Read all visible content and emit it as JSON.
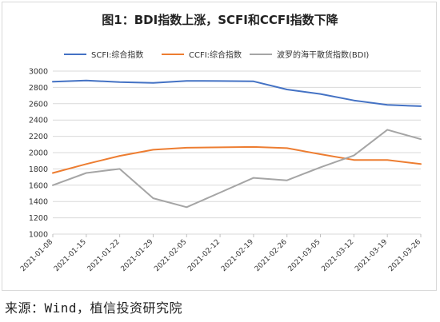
{
  "chart_data": {
    "type": "line",
    "title": "图1：BDI指数上涨，SCFI和CCFI指数下降",
    "categories": [
      "2021-01-08",
      "2021-01-15",
      "2021-01-22",
      "2021-01-29",
      "2021-02-05",
      "2021-02-12",
      "2021-02-19",
      "2021-02-26",
      "2021-03-05",
      "2021-03-12",
      "2021-03-19",
      "2021-03-26"
    ],
    "series": [
      {
        "name": "SCFI:综合指数",
        "color": "#4472c4",
        "values": [
          2870,
          2885,
          2865,
          2855,
          2880,
          2878,
          2875,
          2775,
          2720,
          2640,
          2585,
          2570
        ]
      },
      {
        "name": "CCFI:综合指数",
        "color": "#ed7d31",
        "values": [
          1750,
          1860,
          1960,
          2035,
          2060,
          2065,
          2070,
          2055,
          1980,
          1910,
          1910,
          1860
        ]
      },
      {
        "name": "波罗的海干散货指数(BDI)",
        "color": "#a5a5a5",
        "values": [
          1600,
          1750,
          1800,
          1440,
          1330,
          1510,
          1690,
          1660,
          1820,
          1965,
          2280,
          2165
        ]
      }
    ],
    "ylim": [
      1000,
      3000
    ],
    "yticks": [
      1000,
      1200,
      1400,
      1600,
      1800,
      2000,
      2200,
      2400,
      2600,
      2800,
      3000
    ],
    "grid": true,
    "legend_position": "top"
  },
  "source": "来源：Wind，植信投资研究院"
}
